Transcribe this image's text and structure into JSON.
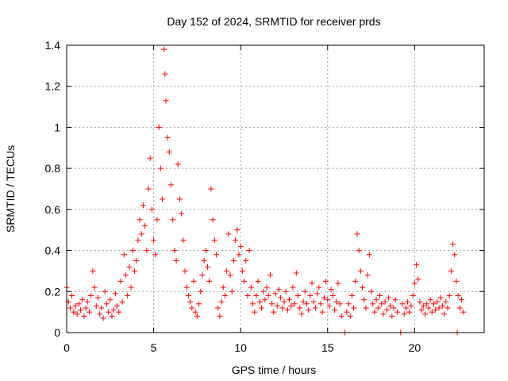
{
  "chart_data": {
    "type": "scatter",
    "title": "Day 152 of 2024, SRMTID for receiver prds",
    "xlabel": "GPS time / hours",
    "ylabel": "SRMTID / TECUs",
    "xlim": [
      0,
      24
    ],
    "ylim": [
      0,
      1.4
    ],
    "xticks": [
      0,
      5,
      10,
      15,
      20
    ],
    "xtick_labels": [
      "0",
      "5",
      "10",
      "15",
      "20"
    ],
    "yticks": [
      0,
      0.2,
      0.4,
      0.6,
      0.8,
      1.0,
      1.2,
      1.4
    ],
    "ytick_labels": [
      "0",
      "0.2",
      "0.4",
      "0.6",
      "0.8",
      "1",
      "1.2",
      "1.4"
    ],
    "grid": true,
    "marker": "+",
    "color": "#ff0000",
    "series": [
      {
        "name": "SRMTID",
        "points": [
          [
            0.0,
            0.22
          ],
          [
            0.1,
            0.15
          ],
          [
            0.2,
            0.12
          ],
          [
            0.3,
            0.18
          ],
          [
            0.4,
            0.1
          ],
          [
            0.5,
            0.13
          ],
          [
            0.6,
            0.09
          ],
          [
            0.7,
            0.14
          ],
          [
            0.8,
            0.11
          ],
          [
            0.9,
            0.16
          ],
          [
            1.0,
            0.08
          ],
          [
            1.1,
            0.12
          ],
          [
            1.2,
            0.15
          ],
          [
            1.3,
            0.1
          ],
          [
            1.4,
            0.18
          ],
          [
            1.5,
            0.3
          ],
          [
            1.6,
            0.22
          ],
          [
            1.7,
            0.13
          ],
          [
            1.8,
            0.17
          ],
          [
            1.9,
            0.09
          ],
          [
            2.0,
            0.12
          ],
          [
            2.1,
            0.07
          ],
          [
            2.2,
            0.2
          ],
          [
            2.3,
            0.14
          ],
          [
            2.4,
            0.1
          ],
          [
            2.5,
            0.16
          ],
          [
            2.6,
            0.08
          ],
          [
            2.7,
            0.11
          ],
          [
            2.8,
            0.19
          ],
          [
            2.9,
            0.13
          ],
          [
            3.0,
            0.1
          ],
          [
            3.1,
            0.25
          ],
          [
            3.2,
            0.15
          ],
          [
            3.3,
            0.38
          ],
          [
            3.4,
            0.28
          ],
          [
            3.5,
            0.18
          ],
          [
            3.6,
            0.32
          ],
          [
            3.7,
            0.22
          ],
          [
            3.8,
            0.4
          ],
          [
            3.9,
            0.3
          ],
          [
            4.0,
            0.35
          ],
          [
            4.1,
            0.45
          ],
          [
            4.2,
            0.55
          ],
          [
            4.3,
            0.48
          ],
          [
            4.4,
            0.62
          ],
          [
            4.5,
            0.52
          ],
          [
            4.6,
            0.4
          ],
          [
            4.7,
            0.7
          ],
          [
            4.8,
            0.85
          ],
          [
            4.9,
            0.6
          ],
          [
            5.0,
            0.45
          ],
          [
            5.1,
            0.38
          ],
          [
            5.2,
            0.55
          ],
          [
            5.3,
            1.0
          ],
          [
            5.4,
            0.8
          ],
          [
            5.5,
            0.65
          ],
          [
            5.6,
            1.38
          ],
          [
            5.65,
            1.26
          ],
          [
            5.7,
            1.13
          ],
          [
            5.8,
            0.95
          ],
          [
            5.9,
            0.88
          ],
          [
            6.0,
            0.72
          ],
          [
            6.1,
            0.55
          ],
          [
            6.2,
            0.4
          ],
          [
            6.3,
            0.35
          ],
          [
            6.4,
            0.82
          ],
          [
            6.5,
            0.65
          ],
          [
            6.6,
            0.58
          ],
          [
            6.7,
            0.45
          ],
          [
            6.8,
            0.3
          ],
          [
            6.9,
            0.22
          ],
          [
            7.0,
            0.18
          ],
          [
            7.1,
            0.15
          ],
          [
            7.2,
            0.12
          ],
          [
            7.3,
            0.25
          ],
          [
            7.4,
            0.1
          ],
          [
            7.5,
            0.08
          ],
          [
            7.6,
            0.14
          ],
          [
            7.7,
            0.2
          ],
          [
            7.8,
            0.28
          ],
          [
            7.9,
            0.35
          ],
          [
            8.0,
            0.4
          ],
          [
            8.1,
            0.32
          ],
          [
            8.2,
            0.25
          ],
          [
            8.3,
            0.7
          ],
          [
            8.4,
            0.55
          ],
          [
            8.5,
            0.45
          ],
          [
            8.6,
            0.38
          ],
          [
            8.7,
            0.12
          ],
          [
            8.8,
            0.08
          ],
          [
            8.9,
            0.15
          ],
          [
            9.0,
            0.22
          ],
          [
            9.1,
            0.18
          ],
          [
            9.2,
            0.3
          ],
          [
            9.3,
            0.48
          ],
          [
            9.4,
            0.28
          ],
          [
            9.5,
            0.2
          ],
          [
            9.6,
            0.35
          ],
          [
            9.7,
            0.45
          ],
          [
            9.8,
            0.5
          ],
          [
            9.9,
            0.38
          ],
          [
            10.0,
            0.42
          ],
          [
            10.1,
            0.3
          ],
          [
            10.2,
            0.25
          ],
          [
            10.3,
            0.35
          ],
          [
            10.4,
            0.18
          ],
          [
            10.5,
            0.4
          ],
          [
            10.6,
            0.22
          ],
          [
            10.7,
            0.14
          ],
          [
            10.8,
            0.1
          ],
          [
            10.9,
            0.18
          ],
          [
            11.0,
            0.25
          ],
          [
            11.1,
            0.15
          ],
          [
            11.2,
            0.12
          ],
          [
            11.3,
            0.2
          ],
          [
            11.4,
            0.16
          ],
          [
            11.5,
            0.22
          ],
          [
            11.6,
            0.18
          ],
          [
            11.7,
            0.28
          ],
          [
            11.8,
            0.14
          ],
          [
            11.9,
            0.1
          ],
          [
            12.0,
            0.19
          ],
          [
            12.1,
            0.13
          ],
          [
            12.2,
            0.21
          ],
          [
            12.3,
            0.17
          ],
          [
            12.4,
            0.12
          ],
          [
            12.5,
            0.15
          ],
          [
            12.6,
            0.2
          ],
          [
            12.7,
            0.11
          ],
          [
            12.8,
            0.16
          ],
          [
            12.9,
            0.13
          ],
          [
            13.0,
            0.22
          ],
          [
            13.1,
            0.14
          ],
          [
            13.2,
            0.29
          ],
          [
            13.3,
            0.18
          ],
          [
            13.4,
            0.12
          ],
          [
            13.5,
            0.09
          ],
          [
            13.6,
            0.15
          ],
          [
            13.7,
            0.2
          ],
          [
            13.8,
            0.14
          ],
          [
            13.9,
            0.11
          ],
          [
            14.0,
            0.18
          ],
          [
            14.1,
            0.24
          ],
          [
            14.2,
            0.15
          ],
          [
            14.3,
            0.12
          ],
          [
            14.4,
            0.19
          ],
          [
            14.5,
            0.22
          ],
          [
            14.6,
            0.14
          ],
          [
            14.7,
            0.1
          ],
          [
            14.8,
            0.17
          ],
          [
            14.9,
            0.25
          ],
          [
            15.0,
            0.16
          ],
          [
            15.1,
            0.13
          ],
          [
            15.2,
            0.21
          ],
          [
            15.3,
            0.18
          ],
          [
            15.4,
            0.11
          ],
          [
            15.5,
            0.15
          ],
          [
            15.6,
            0.24
          ],
          [
            15.7,
            0.14
          ],
          [
            15.8,
            0.08
          ],
          [
            16.0,
            0.0
          ],
          [
            16.1,
            0.1
          ],
          [
            16.2,
            0.14
          ],
          [
            16.3,
            0.08
          ],
          [
            16.4,
            0.18
          ],
          [
            16.5,
            0.12
          ],
          [
            16.6,
            0.25
          ],
          [
            16.7,
            0.48
          ],
          [
            16.8,
            0.4
          ],
          [
            16.9,
            0.3
          ],
          [
            17.0,
            0.22
          ],
          [
            17.1,
            0.16
          ],
          [
            17.2,
            0.12
          ],
          [
            17.3,
            0.28
          ],
          [
            17.4,
            0.38
          ],
          [
            17.5,
            0.2
          ],
          [
            17.6,
            0.14
          ],
          [
            17.7,
            0.1
          ],
          [
            17.8,
            0.16
          ],
          [
            17.9,
            0.12
          ],
          [
            18.0,
            0.18
          ],
          [
            18.1,
            0.14
          ],
          [
            18.2,
            0.09
          ],
          [
            18.3,
            0.15
          ],
          [
            18.4,
            0.11
          ],
          [
            18.5,
            0.17
          ],
          [
            18.6,
            0.13
          ],
          [
            18.7,
            0.08
          ],
          [
            18.8,
            0.12
          ],
          [
            18.9,
            0.16
          ],
          [
            19.0,
            0.1
          ],
          [
            19.2,
            0.0
          ],
          [
            19.3,
            0.14
          ],
          [
            19.4,
            0.09
          ],
          [
            19.5,
            0.12
          ],
          [
            19.6,
            0.15
          ],
          [
            19.7,
            0.1
          ],
          [
            19.8,
            0.13
          ],
          [
            19.9,
            0.18
          ],
          [
            20.0,
            0.24
          ],
          [
            20.1,
            0.33
          ],
          [
            20.2,
            0.26
          ],
          [
            20.3,
            0.15
          ],
          [
            20.4,
            0.11
          ],
          [
            20.5,
            0.13
          ],
          [
            20.6,
            0.09
          ],
          [
            20.7,
            0.14
          ],
          [
            20.8,
            0.12
          ],
          [
            20.9,
            0.16
          ],
          [
            21.0,
            0.1
          ],
          [
            21.1,
            0.14
          ],
          [
            21.2,
            0.11
          ],
          [
            21.3,
            0.15
          ],
          [
            21.4,
            0.12
          ],
          [
            21.5,
            0.17
          ],
          [
            21.6,
            0.13
          ],
          [
            21.7,
            0.09
          ],
          [
            21.8,
            0.15
          ],
          [
            21.9,
            0.12
          ],
          [
            22.0,
            0.18
          ],
          [
            22.1,
            0.3
          ],
          [
            22.2,
            0.43
          ],
          [
            22.3,
            0.38
          ],
          [
            22.4,
            0.25
          ],
          [
            22.45,
            0.0
          ],
          [
            22.5,
            0.18
          ],
          [
            22.6,
            0.12
          ],
          [
            22.7,
            0.16
          ],
          [
            22.8,
            0.1
          ]
        ]
      }
    ]
  }
}
